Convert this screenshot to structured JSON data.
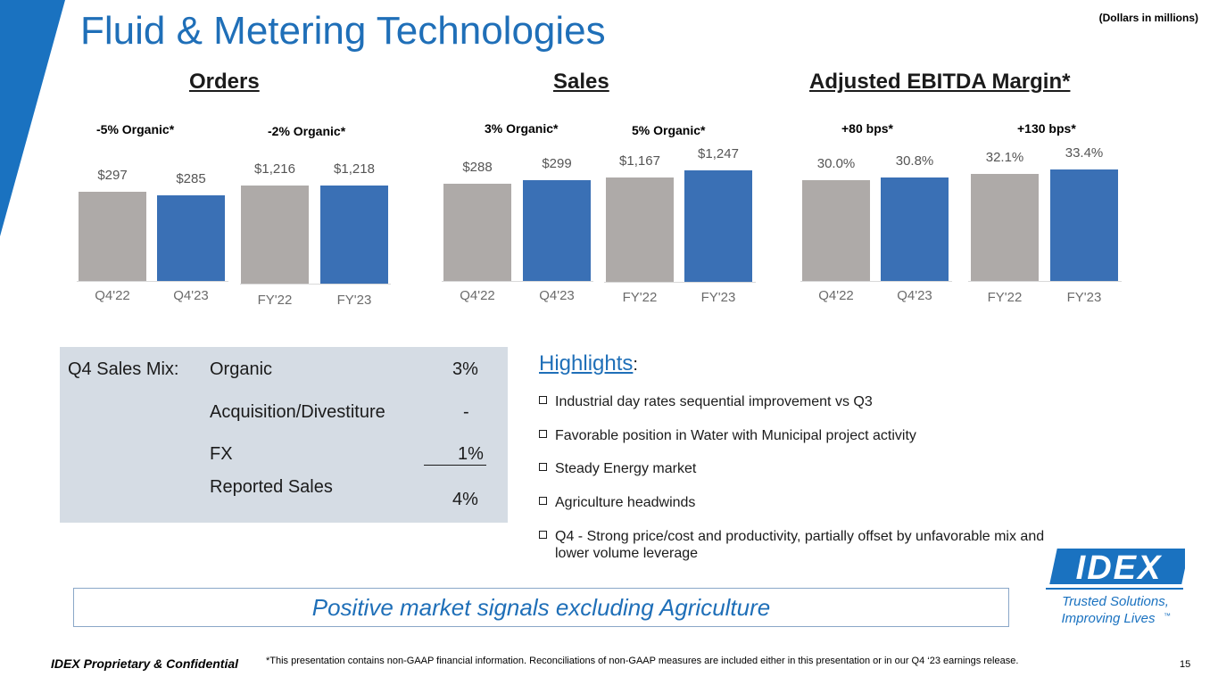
{
  "header": {
    "title": "Fluid & Metering Technologies",
    "units_note": "(Dollars in millions)"
  },
  "colors": {
    "accent_blue": "#1f6fb8",
    "bar_gray": "#aeaaa8",
    "bar_blue": "#3a70b5",
    "mix_bg": "#d5dce4"
  },
  "sections": {
    "orders": {
      "title": "Orders",
      "notes": [
        "-5% Organic*",
        "-2% Organic*"
      ]
    },
    "sales": {
      "title": "Sales",
      "notes": [
        "3% Organic*",
        "5% Organic*"
      ]
    },
    "ebitda": {
      "title": "Adjusted EBITDA Margin*",
      "notes": [
        "+80 bps*",
        "+130 bps*"
      ]
    }
  },
  "chart_data": [
    {
      "type": "bar",
      "title": "Orders",
      "categories": [
        "Q4'22",
        "Q4'23",
        "FY'22",
        "FY'23"
      ],
      "values": [
        297,
        285,
        1216,
        1218
      ],
      "labels": [
        "$297",
        "$285",
        "$1,216",
        "$1,218"
      ],
      "units": "$M"
    },
    {
      "type": "bar",
      "title": "Sales",
      "categories": [
        "Q4'22",
        "Q4'23",
        "FY'22",
        "FY'23"
      ],
      "values": [
        288,
        299,
        1167,
        1247
      ],
      "labels": [
        "$288",
        "$299",
        "$1,167",
        "$1,247"
      ],
      "units": "$M"
    },
    {
      "type": "bar",
      "title": "Adjusted EBITDA Margin*",
      "categories": [
        "Q4'22",
        "Q4'23",
        "FY'22",
        "FY'23"
      ],
      "values": [
        30.0,
        30.8,
        32.1,
        33.4
      ],
      "labels": [
        "30.0%",
        "30.8%",
        "32.1%",
        "33.4%"
      ],
      "units": "%"
    }
  ],
  "sales_mix": {
    "label": "Q4 Sales Mix:",
    "rows": [
      {
        "name": "Organic",
        "value": "3%"
      },
      {
        "name": "Acquisition/Divestiture",
        "value": "-"
      },
      {
        "name": "FX",
        "value": "1%"
      },
      {
        "name": "Reported Sales",
        "value": "4%"
      }
    ]
  },
  "highlights": {
    "title": "Highlights",
    "colon": ":",
    "items": [
      "Industrial day rates sequential improvement vs Q3",
      "Favorable position in Water with Municipal project activity",
      "Steady Energy market",
      "Agriculture headwinds",
      "Q4 - Strong price/cost and productivity, partially offset by unfavorable mix and lower volume leverage"
    ]
  },
  "banner": {
    "text": "Positive market signals excluding Agriculture"
  },
  "logo": {
    "brand": "IDEX",
    "tagline_line1": "Trusted Solutions,",
    "tagline_line2": "Improving Lives",
    "tm": "™"
  },
  "footer": {
    "confidential": "IDEX Proprietary & Confidential",
    "note": "*This presentation contains non-GAAP financial information. Reconciliations of non-GAAP measures are included either in this presentation or in our Q4 ‘23 earnings release.",
    "page": "15"
  }
}
